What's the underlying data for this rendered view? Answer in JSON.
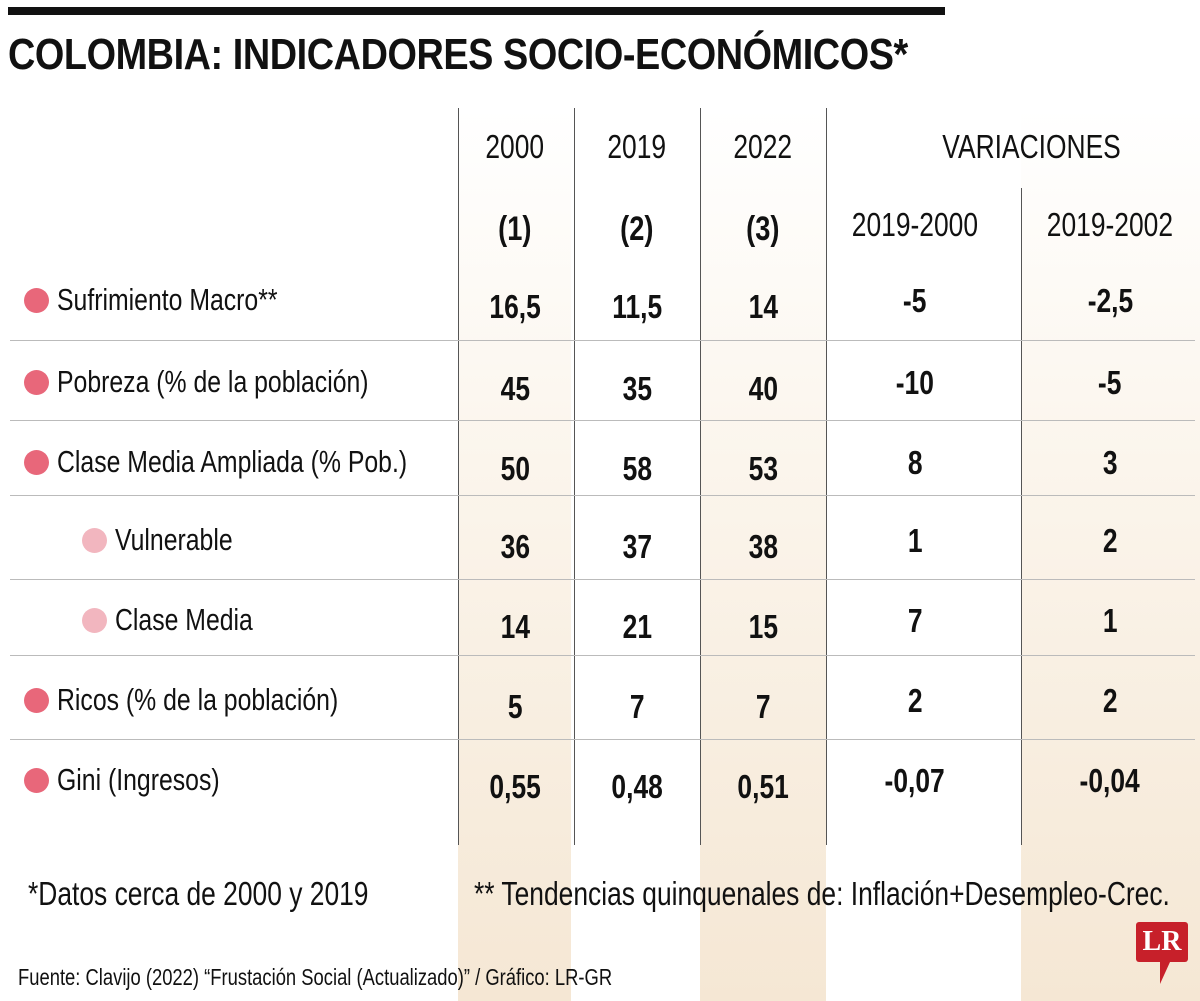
{
  "title": "COLOMBIA: INDICADORES SOCIO-ECONÓMICOS*",
  "colors": {
    "dot_main": "#e8677a",
    "dot_sub": "#f2b6bf",
    "shade": "#f5e7d4",
    "logo": "#c7202a"
  },
  "chart_data": {
    "type": "table",
    "title": "COLOMBIA: INDICADORES SOCIO-ECONÓMICOS*",
    "column_headers": [
      "2000",
      "2019",
      "2022",
      "VARIACIONES"
    ],
    "sub_headers": [
      "(1)",
      "(2)",
      "(3)",
      "2019-2000",
      "2019-2002"
    ],
    "rows": [
      {
        "label": "Sufrimiento Macro**",
        "level": "main",
        "values": [
          "16,5",
          "11,5",
          "14",
          "-5",
          "-2,5"
        ]
      },
      {
        "label": "Pobreza (% de la población)",
        "level": "main",
        "values": [
          "45",
          "35",
          "40",
          "-10",
          "-5"
        ]
      },
      {
        "label": "Clase Media Ampliada (% Pob.)",
        "level": "main",
        "values": [
          "50",
          "58",
          "53",
          "8",
          "3"
        ]
      },
      {
        "label": "Vulnerable",
        "level": "sub",
        "values": [
          "36",
          "37",
          "38",
          "1",
          "2"
        ]
      },
      {
        "label": "Clase Media",
        "level": "sub",
        "values": [
          "14",
          "21",
          "15",
          "7",
          "1"
        ]
      },
      {
        "label": "Ricos (% de la población)",
        "level": "main",
        "values": [
          "5",
          "7",
          "7",
          "2",
          "2"
        ]
      },
      {
        "label": "Gini (Ingresos)",
        "level": "main",
        "values": [
          "0,55",
          "0,48",
          "0,51",
          "-0,07",
          "-0,04"
        ]
      }
    ]
  },
  "footnotes": {
    "note1": "*Datos cerca de 2000 y 2019",
    "note2": "** Tendencias quinquenales de: Inflación+Desempleo-Crec.",
    "source": "Fuente: Clavijo (2022) “Frustación Social (Actualizado)” / Gráfico: LR-GR"
  },
  "logo": "LR"
}
